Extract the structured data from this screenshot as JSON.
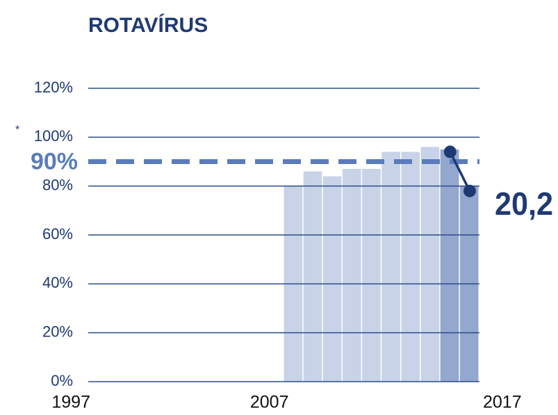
{
  "chart_data": {
    "type": "bar",
    "title": "ROTAVÍRUS",
    "x": [
      2007,
      2008,
      2009,
      2010,
      2011,
      2012,
      2013,
      2014,
      2015,
      2016
    ],
    "values": [
      80,
      86,
      84,
      87,
      87,
      94,
      94,
      96,
      95,
      80
    ],
    "bar_colors": [
      "#c8d3e8",
      "#c8d3e8",
      "#c8d3e8",
      "#c8d3e8",
      "#c8d3e8",
      "#c8d3e8",
      "#c8d3e8",
      "#c8d3e8",
      "#93a7cf",
      "#93a7cf"
    ],
    "line": {
      "x": [
        2015,
        2016
      ],
      "values": [
        94,
        78
      ],
      "color": "#1f3a73"
    },
    "target": {
      "value": 90,
      "label": "90%",
      "color": "#5b7cbb"
    },
    "annotations": [
      "*",
      "20,2"
    ],
    "xlim": [
      1997,
      2017
    ],
    "xticks": [
      1997,
      2007,
      2017
    ],
    "ylim": [
      0,
      120
    ],
    "yticks": [
      {
        "value": 0,
        "label": "0%"
      },
      {
        "value": 20,
        "label": "20%"
      },
      {
        "value": 40,
        "label": "40%"
      },
      {
        "value": 60,
        "label": "60%"
      },
      {
        "value": 80,
        "label": "80%"
      },
      {
        "value": 100,
        "label": "100%"
      },
      {
        "value": 120,
        "label": "120%"
      }
    ],
    "grid": true
  }
}
